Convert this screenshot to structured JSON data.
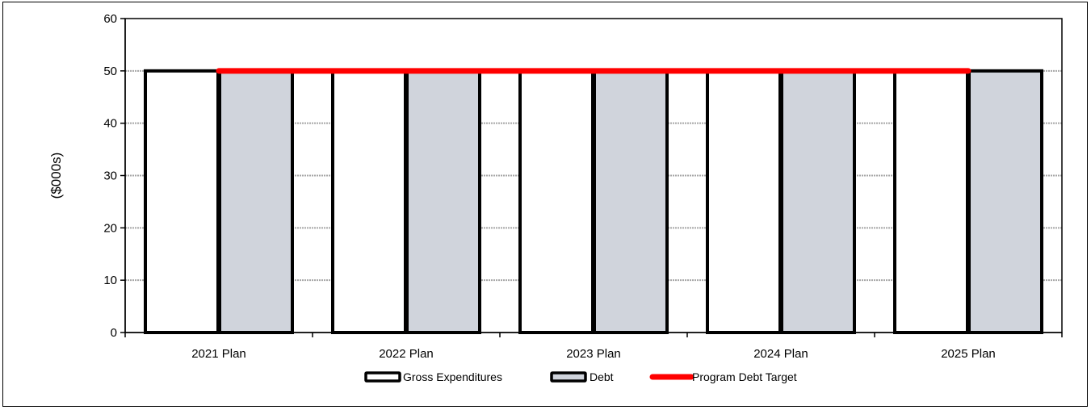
{
  "chart_data": {
    "type": "bar",
    "categories": [
      "2021 Plan",
      "2022 Plan",
      "2023 Plan",
      "2024 Plan",
      "2025 Plan"
    ],
    "series": [
      {
        "name": "Gross Expenditures",
        "kind": "bar",
        "color": "#ffffff",
        "values": [
          50,
          50,
          50,
          50,
          50
        ]
      },
      {
        "name": "Debt",
        "kind": "bar",
        "color": "#d0d4dc",
        "values": [
          50,
          50,
          50,
          50,
          50
        ]
      },
      {
        "name": "Program Debt Target",
        "kind": "line",
        "color": "#ff0000",
        "values": [
          50,
          50,
          50,
          50,
          50
        ]
      }
    ],
    "ylabel": "($000s)",
    "xlabel": "",
    "ylim": [
      0,
      60
    ],
    "yticks": [
      0,
      10,
      20,
      30,
      40,
      50,
      60
    ],
    "grid": true,
    "legend_position": "bottom"
  }
}
